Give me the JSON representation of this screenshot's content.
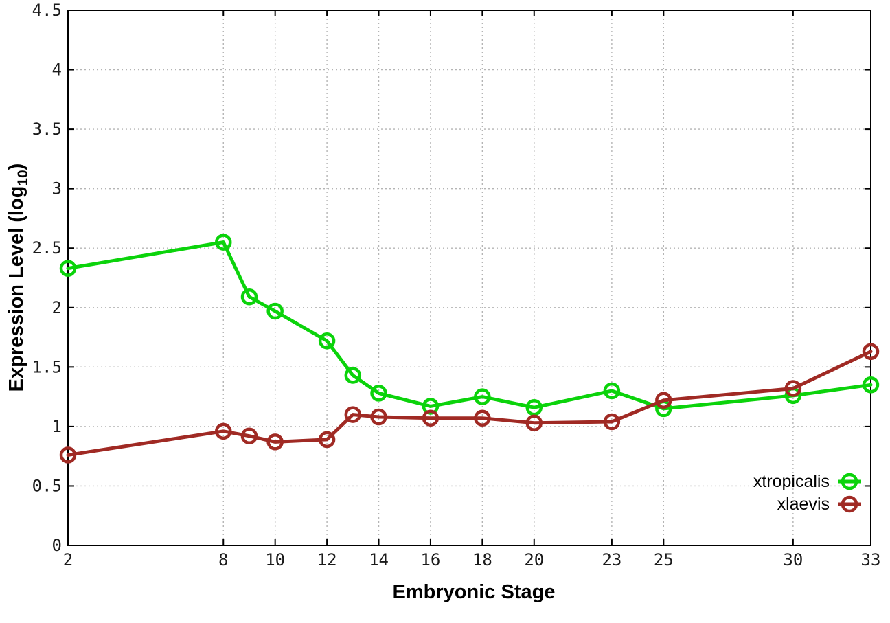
{
  "chart_data": {
    "type": "line",
    "title": "",
    "xlabel": "Embryonic Stage",
    "ylabel": "Expression Level (log10)",
    "ylabel_parts": {
      "prefix": "Expression Level (log",
      "sub": "10",
      "suffix": ")"
    },
    "x": [
      2,
      8,
      9,
      10,
      12,
      13,
      14,
      16,
      18,
      20,
      23,
      25,
      30,
      33
    ],
    "series": [
      {
        "name": "xtropicalis",
        "color": "#0bd30b",
        "values": [
          2.33,
          2.55,
          2.09,
          1.97,
          1.72,
          1.43,
          1.28,
          1.17,
          1.25,
          1.16,
          1.3,
          1.15,
          1.26,
          1.35
        ]
      },
      {
        "name": "xlaevis",
        "color": "#a02a24",
        "values": [
          0.76,
          0.96,
          0.92,
          0.87,
          0.89,
          1.1,
          1.08,
          1.07,
          1.07,
          1.03,
          1.04,
          1.22,
          1.32,
          1.63
        ]
      }
    ],
    "xlim": [
      2,
      33
    ],
    "ylim": [
      0,
      4.5
    ],
    "x_ticks": [
      2,
      8,
      10,
      12,
      14,
      16,
      18,
      20,
      23,
      25,
      30,
      33
    ],
    "x_tick_labels": [
      "2",
      "8",
      "10",
      "12",
      "14",
      "16",
      "18",
      "20",
      "23",
      "25",
      "30",
      "33"
    ],
    "y_ticks": [
      0,
      0.5,
      1,
      1.5,
      2,
      2.5,
      3,
      3.5,
      4,
      4.5
    ],
    "y_tick_labels": [
      "0",
      "0.5",
      "1",
      "1.5",
      "2",
      "2.5",
      "3",
      "3.5",
      "4",
      "4.5"
    ],
    "grid": true,
    "grid_color": "#b4b4b4",
    "border_color": "#000000",
    "legend_position": "bottom-right",
    "legend_entries": [
      "xtropicalis",
      "xlaevis"
    ]
  }
}
